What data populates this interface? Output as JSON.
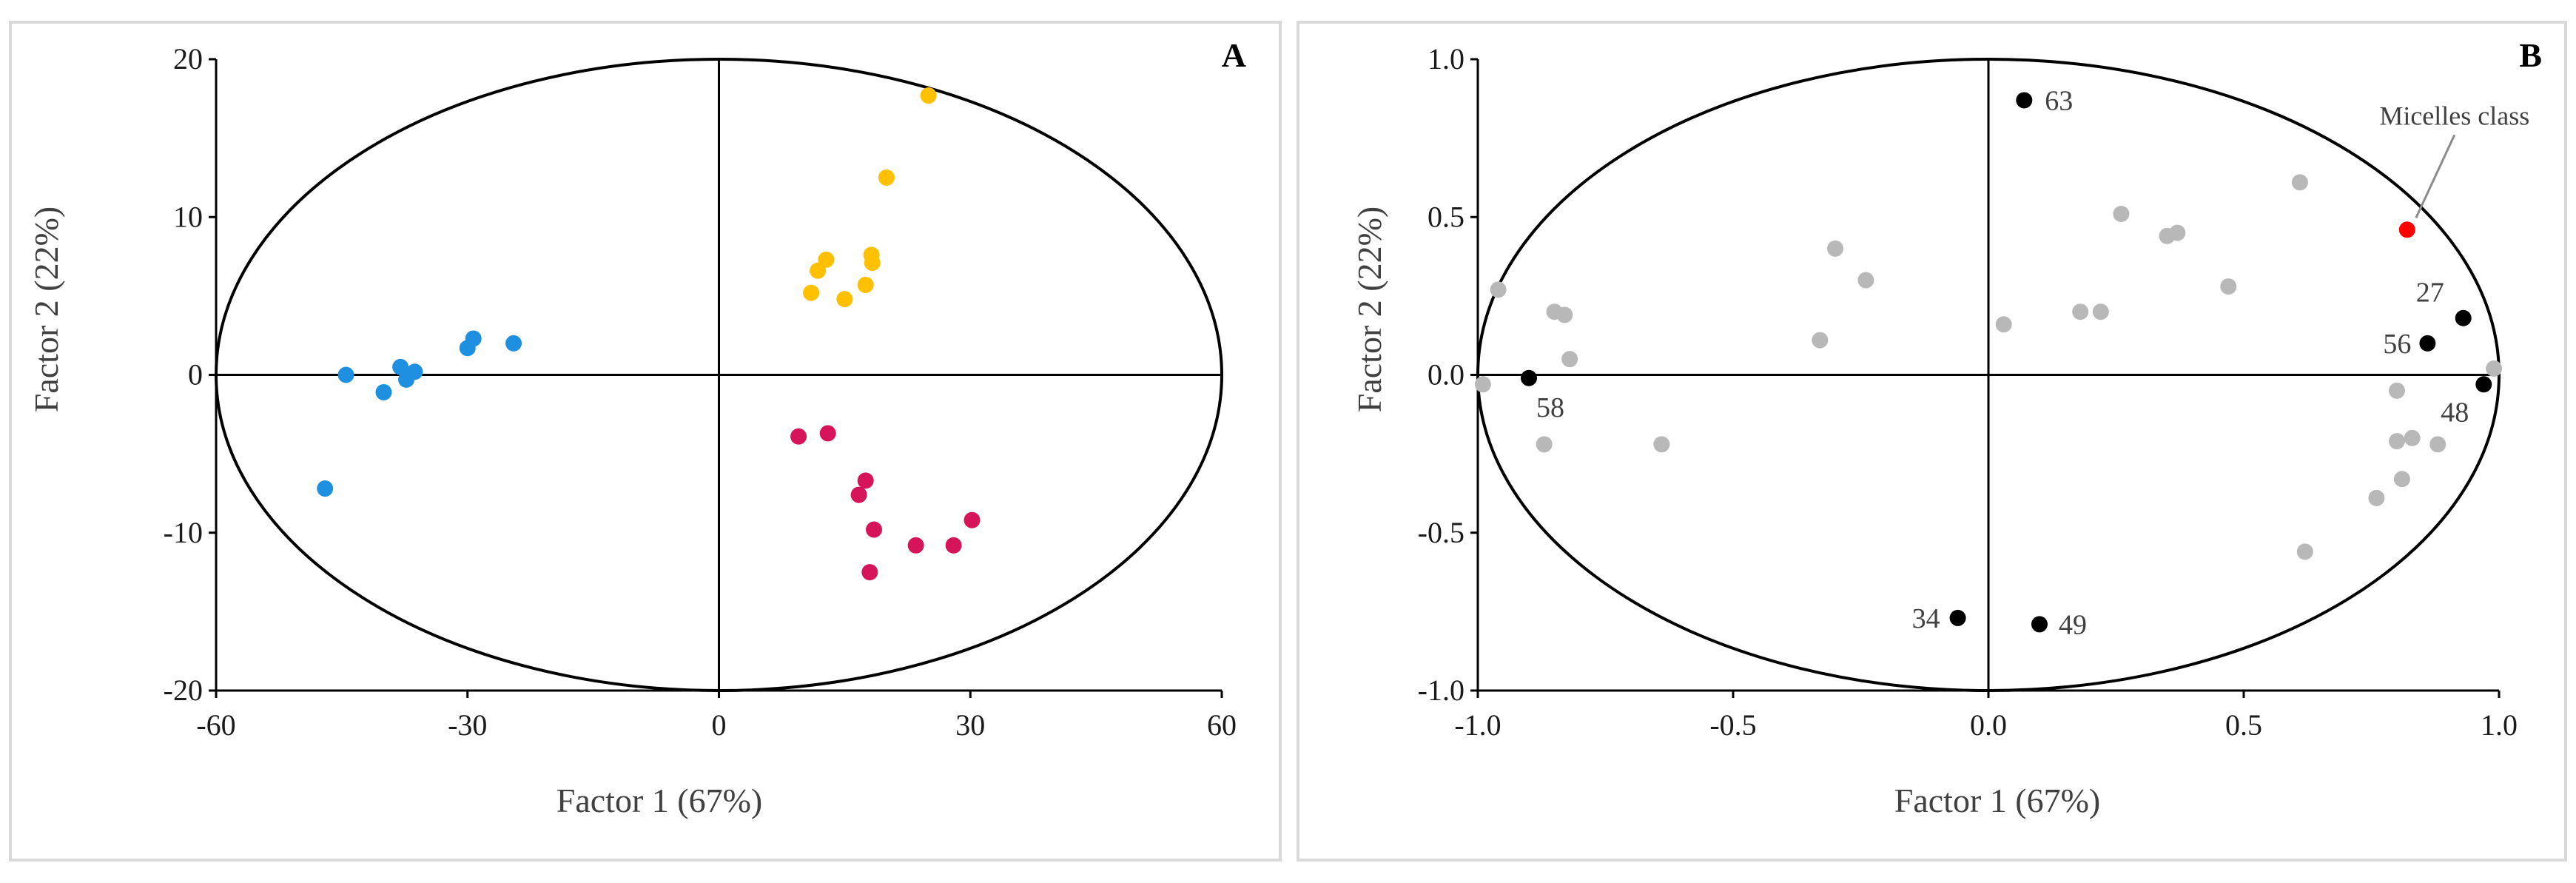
{
  "colors": {
    "blue": "#1f8fe0",
    "yellow": "#ffc000",
    "magenta": "#d6145a",
    "grey": "#b8b8b8",
    "black": "#000000",
    "red": "#ff0000"
  },
  "chart_data": [
    {
      "type": "scatter",
      "panel_label": "A",
      "xlabel": "Factor 1 (67%)",
      "ylabel": "Factor 2 (22%)",
      "xlim": [
        -60,
        60
      ],
      "ylim": [
        -20,
        20
      ],
      "xticks": [
        "-60",
        "-30",
        "0",
        "30",
        "60"
      ],
      "yticks": [
        "20",
        "10",
        "0",
        "-10",
        "-20"
      ],
      "xtick_values": [
        -60,
        -30,
        0,
        30,
        60
      ],
      "ytick_values": [
        20,
        10,
        0,
        -10,
        -20
      ],
      "series": [
        {
          "name": "blue group",
          "color": "#1f8fe0",
          "points": [
            [
              -47,
              -7.2
            ],
            [
              -44.5,
              0
            ],
            [
              -40,
              -1.1
            ],
            [
              -38,
              0.5
            ],
            [
              -37.3,
              -0.3
            ],
            [
              -36.3,
              0.2
            ],
            [
              -30,
              1.7
            ],
            [
              -29.3,
              2.3
            ],
            [
              -24.5,
              2.0
            ]
          ]
        },
        {
          "name": "yellow group",
          "color": "#ffc000",
          "points": [
            [
              11,
              5.2
            ],
            [
              11.8,
              6.6
            ],
            [
              12.8,
              7.3
            ],
            [
              15,
              4.8
            ],
            [
              17.5,
              5.7
            ],
            [
              18.2,
              7.6
            ],
            [
              18.3,
              7.1
            ],
            [
              20,
              12.5
            ],
            [
              25,
              17.7
            ]
          ]
        },
        {
          "name": "magenta group",
          "color": "#d6145a",
          "points": [
            [
              9.5,
              -3.9
            ],
            [
              13,
              -3.7
            ],
            [
              16.7,
              -7.6
            ],
            [
              17.5,
              -6.7
            ],
            [
              18,
              -12.5
            ],
            [
              18.5,
              -9.8
            ],
            [
              23.5,
              -10.8
            ],
            [
              28,
              -10.8
            ],
            [
              30.2,
              -9.2
            ]
          ]
        }
      ]
    },
    {
      "type": "scatter",
      "panel_label": "B",
      "xlabel": "Factor 1 (67%)",
      "ylabel": "Factor 2 (22%)",
      "xlim": [
        -1.0,
        1.0
      ],
      "ylim": [
        -1.0,
        1.0
      ],
      "xticks": [
        "-1.0",
        "-0.5",
        "0.0",
        "0.5",
        "1.0"
      ],
      "yticks": [
        "1.0",
        "0.5",
        "0.0",
        "-0.5",
        "-1.0"
      ],
      "xtick_values": [
        -1.0,
        -0.5,
        0.0,
        0.5,
        1.0
      ],
      "ytick_values": [
        1.0,
        0.5,
        0.0,
        -0.5,
        -1.0
      ],
      "annotation": "Micelles class",
      "series": [
        {
          "name": "variables",
          "color": "#b8b8b8",
          "points": [
            [
              -0.96,
              0.27
            ],
            [
              -0.99,
              -0.03
            ],
            [
              -0.85,
              0.2
            ],
            [
              -0.83,
              0.19
            ],
            [
              -0.82,
              0.05
            ],
            [
              -0.87,
              -0.22
            ],
            [
              -0.64,
              -0.22
            ],
            [
              -0.33,
              0.11
            ],
            [
              -0.3,
              0.4
            ],
            [
              -0.24,
              0.3
            ],
            [
              0.03,
              0.16
            ],
            [
              0.18,
              0.2
            ],
            [
              0.22,
              0.2
            ],
            [
              0.26,
              0.51
            ],
            [
              0.35,
              0.44
            ],
            [
              0.37,
              0.45
            ],
            [
              0.47,
              0.28
            ],
            [
              0.61,
              0.61
            ],
            [
              0.62,
              -0.56
            ],
            [
              0.76,
              -0.39
            ],
            [
              0.8,
              -0.05
            ],
            [
              0.8,
              -0.21
            ],
            [
              0.81,
              -0.33
            ],
            [
              0.83,
              -0.2
            ],
            [
              0.88,
              -0.22
            ],
            [
              0.99,
              0.02
            ]
          ]
        },
        {
          "name": "labelled variables",
          "color": "#000000",
          "points": [
            [
              0.07,
              0.87
            ],
            [
              0.93,
              0.18
            ],
            [
              0.86,
              0.1
            ],
            [
              0.97,
              -0.03
            ],
            [
              -0.9,
              -0.01
            ],
            [
              -0.06,
              -0.77
            ],
            [
              0.1,
              -0.79
            ]
          ],
          "labels": [
            "63",
            "27",
            "56",
            "48",
            "58",
            "34",
            "49"
          ]
        },
        {
          "name": "Micelles class",
          "color": "#ff0000",
          "points": [
            [
              0.82,
              0.46
            ]
          ]
        }
      ]
    }
  ]
}
